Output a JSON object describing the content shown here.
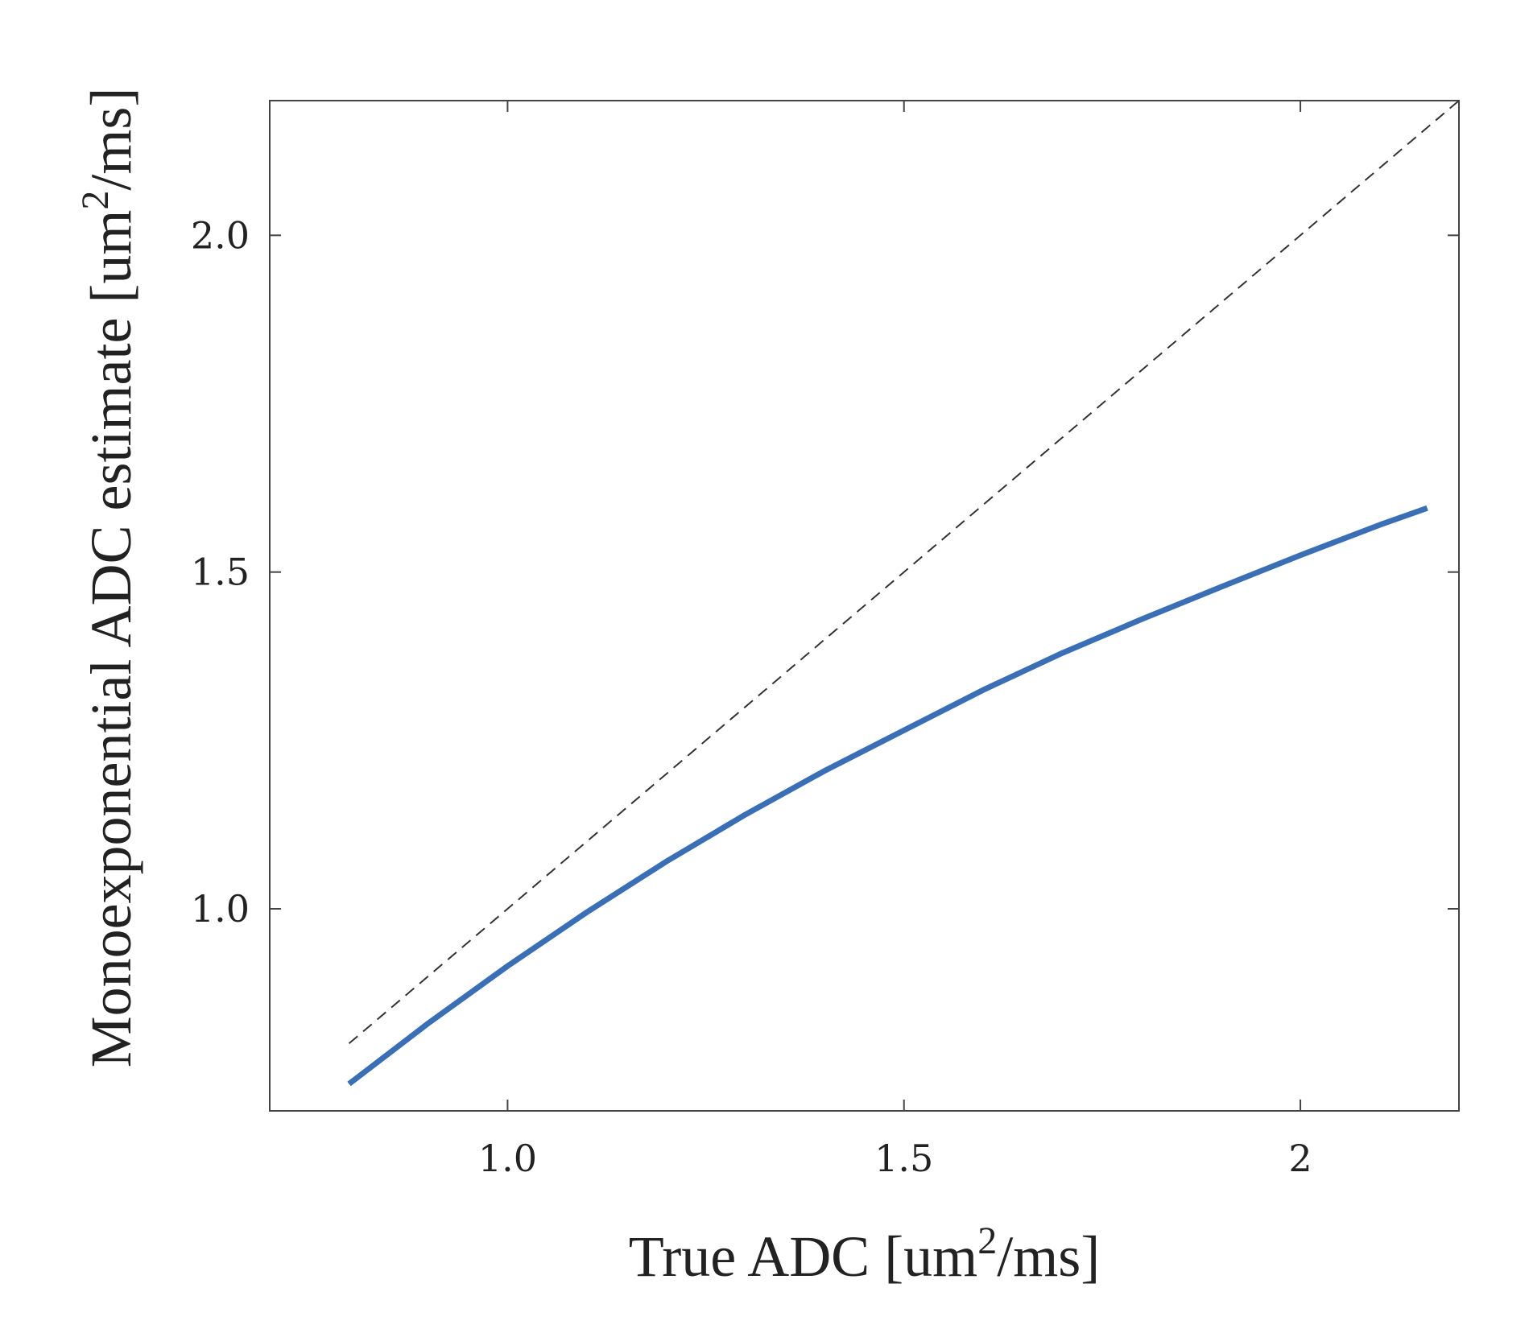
{
  "chart_data": {
    "type": "line",
    "title": "",
    "xlabel": {
      "prefix": "True ADC [um",
      "sup": "2",
      "suffix": "/ms]"
    },
    "ylabel": {
      "prefix": "Monoexponential ADC estimate  [um",
      "sup": "2",
      "suffix": "/ms]"
    },
    "xlim": [
      0.7,
      2.2
    ],
    "ylim": [
      0.7,
      2.2
    ],
    "xticks": [
      {
        "value": 1.0,
        "label": "1.0"
      },
      {
        "value": 1.5,
        "label": "1.5"
      },
      {
        "value": 2.0,
        "label": "2"
      }
    ],
    "yticks": [
      {
        "value": 1.0,
        "label": "1.0"
      },
      {
        "value": 1.5,
        "label": "1.5"
      },
      {
        "value": 2.0,
        "label": "2.0"
      }
    ],
    "grid": false,
    "legend": "none",
    "series": [
      {
        "color": "#3a6fb5",
        "style": "solid",
        "x": [
          0.8,
          0.9,
          1.0,
          1.1,
          1.2,
          1.3,
          1.4,
          1.5,
          1.6,
          1.7,
          1.8,
          1.9,
          2.0,
          2.1,
          2.16
        ],
        "y": [
          0.74,
          0.83,
          0.915,
          0.995,
          1.07,
          1.14,
          1.205,
          1.265,
          1.325,
          1.38,
          1.43,
          1.478,
          1.525,
          1.57,
          1.595
        ]
      },
      {
        "color": "#333333",
        "style": "dashed",
        "x": [
          0.8,
          2.2
        ],
        "y": [
          0.8,
          2.2
        ]
      }
    ]
  }
}
